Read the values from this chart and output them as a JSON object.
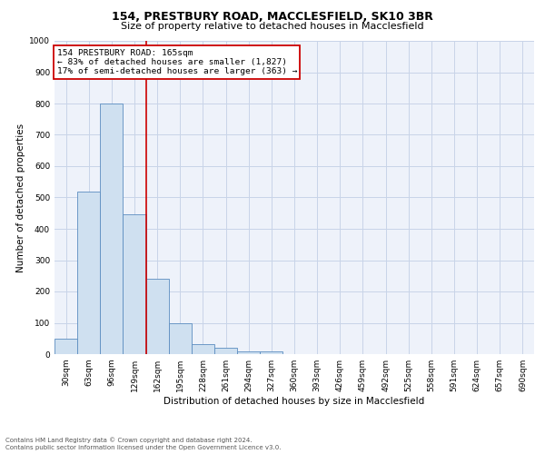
{
  "title1": "154, PRESTBURY ROAD, MACCLESFIELD, SK10 3BR",
  "title2": "Size of property relative to detached houses in Macclesfield",
  "xlabel": "Distribution of detached houses by size in Macclesfield",
  "ylabel": "Number of detached properties",
  "footer1": "Contains HM Land Registry data © Crown copyright and database right 2024.",
  "footer2": "Contains public sector information licensed under the Open Government Licence v3.0.",
  "annotation_line1": "154 PRESTBURY ROAD: 165sqm",
  "annotation_line2": "← 83% of detached houses are smaller (1,827)",
  "annotation_line3": "17% of semi-detached houses are larger (363) →",
  "bar_values": [
    50,
    520,
    800,
    445,
    240,
    98,
    33,
    20,
    10,
    8,
    0,
    0,
    0,
    0,
    0,
    0,
    0,
    0,
    0,
    0,
    0
  ],
  "bin_labels": [
    "30sqm",
    "63sqm",
    "96sqm",
    "129sqm",
    "162sqm",
    "195sqm",
    "228sqm",
    "261sqm",
    "294sqm",
    "327sqm",
    "360sqm",
    "393sqm",
    "426sqm",
    "459sqm",
    "492sqm",
    "525sqm",
    "558sqm",
    "591sqm",
    "624sqm",
    "657sqm",
    "690sqm"
  ],
  "bar_color": "#cfe0f0",
  "bar_edge_color": "#5b8dc0",
  "vline_color": "#cc0000",
  "ylim": [
    0,
    1000
  ],
  "yticks": [
    0,
    100,
    200,
    300,
    400,
    500,
    600,
    700,
    800,
    900,
    1000
  ],
  "annotation_box_color": "#cc0000",
  "annotation_text_color": "#000000",
  "grid_color": "#c8d4e8",
  "background_color": "#eef2fa",
  "title1_fontsize": 9,
  "title2_fontsize": 8,
  "xlabel_fontsize": 7.5,
  "ylabel_fontsize": 7.5,
  "tick_fontsize": 6.5,
  "annotation_fontsize": 6.8,
  "footer_fontsize": 5
}
